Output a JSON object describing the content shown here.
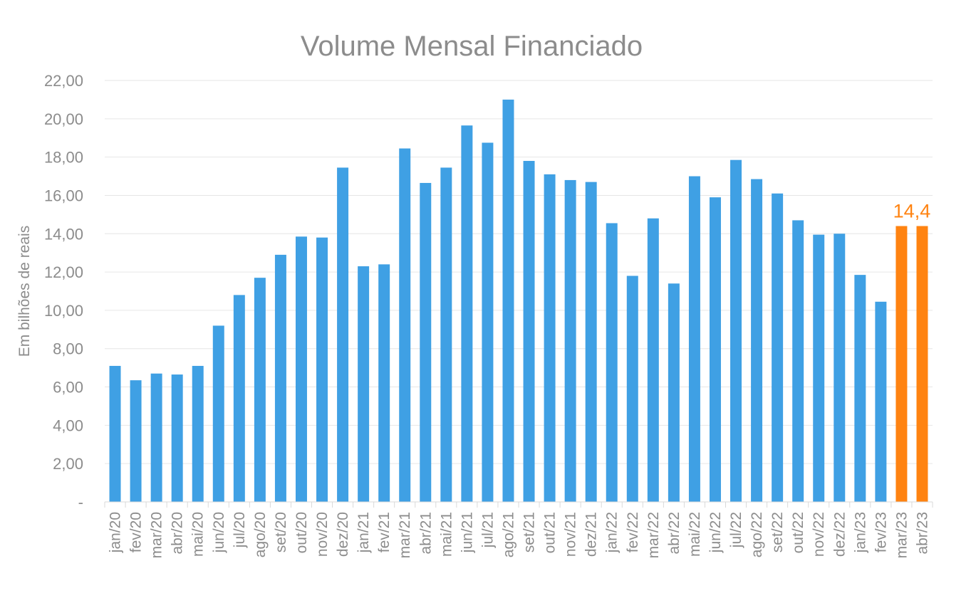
{
  "chart_data": {
    "type": "bar",
    "title": "Volume Mensal Financiado",
    "xlabel": "",
    "ylabel": "Em bilhões de reais",
    "ylim": [
      0,
      22
    ],
    "y_ticks": [
      0,
      2,
      4,
      6,
      8,
      10,
      12,
      14,
      16,
      18,
      20,
      22
    ],
    "y_tick_labels": [
      "-",
      "2,00",
      "4,00",
      "6,00",
      "8,00",
      "10,00",
      "12,00",
      "14,00",
      "16,00",
      "18,00",
      "20,00",
      "22,00"
    ],
    "grid": true,
    "categories": [
      "jan/20",
      "fev/20",
      "mar/20",
      "abr/20",
      "mai/20",
      "jun/20",
      "jul/20",
      "ago/20",
      "set/20",
      "out/20",
      "nov/20",
      "dez/20",
      "jan/21",
      "fev/21",
      "mar/21",
      "abr/21",
      "mai/21",
      "jun/21",
      "jul/21",
      "ago/21",
      "set/21",
      "out/21",
      "nov/21",
      "dez/21",
      "jan/22",
      "fev/22",
      "mar/22",
      "abr/22",
      "mai/22",
      "jun/22",
      "jul/22",
      "ago/22",
      "set/22",
      "out/22",
      "nov/22",
      "dez/22",
      "jan/23",
      "fev/23",
      "mar/23",
      "abr/23"
    ],
    "values": [
      7.1,
      6.35,
      6.7,
      6.65,
      7.1,
      9.2,
      10.8,
      11.7,
      12.9,
      13.85,
      13.8,
      17.45,
      12.3,
      12.4,
      18.45,
      16.65,
      17.45,
      19.65,
      18.75,
      21.0,
      17.8,
      17.1,
      16.8,
      16.7,
      14.55,
      11.8,
      14.8,
      11.4,
      17.0,
      15.9,
      17.85,
      16.85,
      16.1,
      14.7,
      13.95,
      14.0,
      11.85,
      10.45,
      14.4,
      14.4
    ],
    "colors": {
      "default": "#3fa0e4",
      "highlight": "#ff8311",
      "highlight_indices": [
        38,
        39
      ]
    },
    "data_labels": [
      {
        "text": "14,4",
        "color": "#ff8311"
      }
    ]
  }
}
